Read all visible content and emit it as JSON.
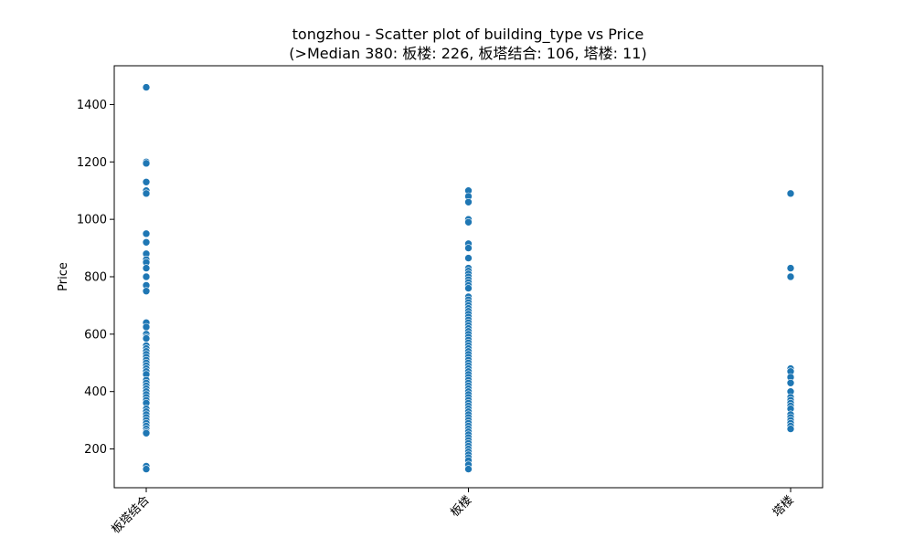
{
  "chart_data": {
    "type": "scatter",
    "title": "tongzhou - Scatter plot of building_type vs Price",
    "subtitle": "(>Median 380: 板楼: 226, 板塔结合: 106, 塔楼: 11)",
    "xlabel": "",
    "ylabel": "Price",
    "categories": [
      "板塔结合",
      "板楼",
      "塔楼"
    ],
    "ylim": [
      65,
      1535
    ],
    "yticks": [
      200,
      400,
      600,
      800,
      1000,
      1200,
      1400
    ],
    "grid": false,
    "point_color": "#1f77b4",
    "series": [
      {
        "category": "板塔结合",
        "values": [
          1460,
          1200,
          1195,
          1130,
          1100,
          1090,
          950,
          920,
          880,
          860,
          850,
          830,
          800,
          770,
          750,
          640,
          625,
          600,
          590,
          585,
          560,
          550,
          540,
          530,
          520,
          510,
          500,
          490,
          480,
          470,
          460,
          440,
          430,
          420,
          410,
          400,
          390,
          380,
          370,
          360,
          340,
          330,
          320,
          310,
          300,
          290,
          280,
          270,
          260,
          255,
          140,
          130
        ]
      },
      {
        "category": "板楼",
        "values": [
          1100,
          1080,
          1060,
          1000,
          990,
          915,
          900,
          865,
          830,
          820,
          810,
          800,
          790,
          780,
          770,
          760,
          730,
          720,
          710,
          700,
          690,
          680,
          670,
          660,
          650,
          640,
          630,
          620,
          610,
          600,
          590,
          580,
          570,
          560,
          550,
          540,
          530,
          520,
          510,
          500,
          490,
          480,
          470,
          460,
          450,
          440,
          430,
          420,
          410,
          400,
          390,
          380,
          370,
          360,
          350,
          340,
          330,
          320,
          310,
          300,
          290,
          280,
          270,
          260,
          250,
          240,
          230,
          220,
          210,
          200,
          190,
          180,
          170,
          160,
          145,
          130
        ]
      },
      {
        "category": "塔楼",
        "values": [
          1090,
          830,
          800,
          480,
          470,
          450,
          430,
          400,
          380,
          370,
          360,
          350,
          340,
          320,
          310,
          300,
          290,
          280,
          270
        ]
      }
    ]
  }
}
